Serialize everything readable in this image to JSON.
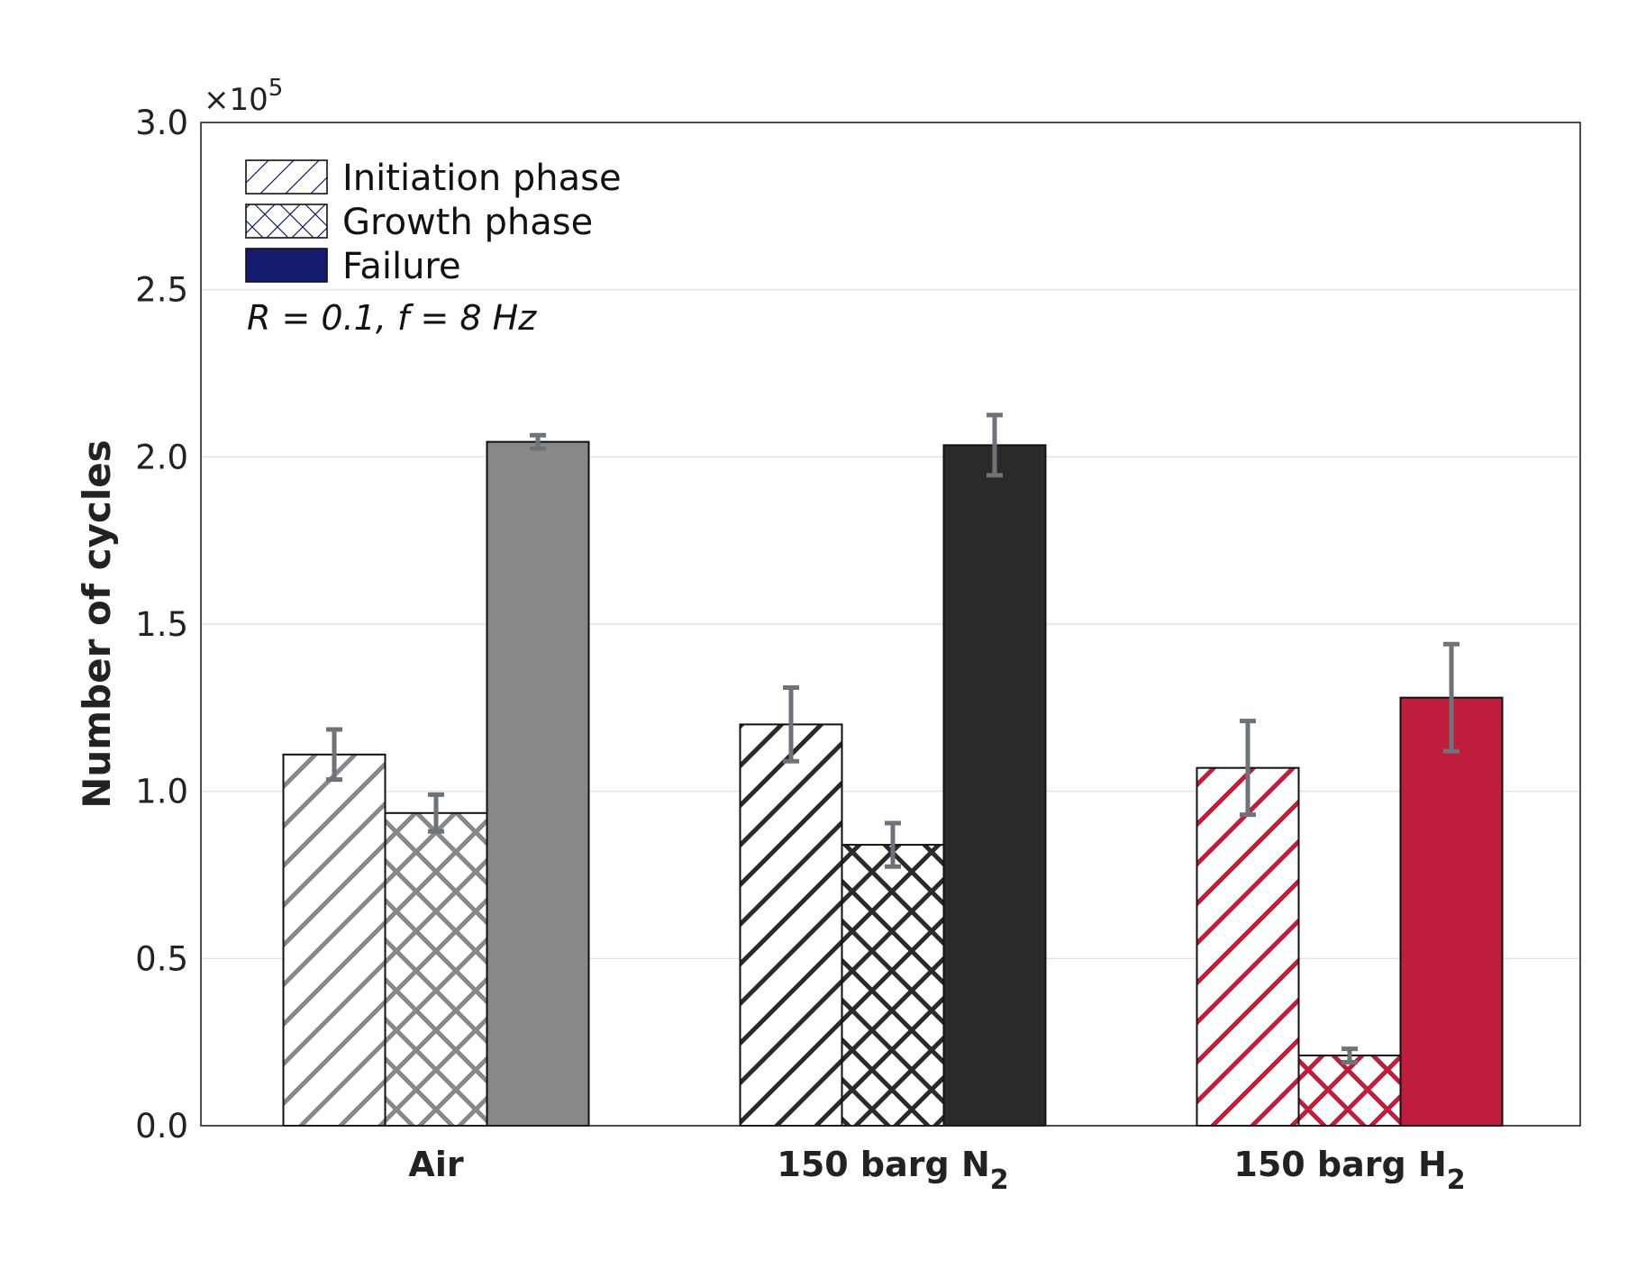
{
  "chart_data": {
    "type": "bar",
    "title": "",
    "xlabel": "",
    "ylabel": "Number of cycles",
    "y_multiplier_base": "×10",
    "y_multiplier_exp": "5",
    "ylim": [
      0,
      3.0
    ],
    "yticks": [
      "0.0",
      "0.5",
      "1.0",
      "1.5",
      "2.0",
      "2.5",
      "3.0"
    ],
    "grid": true,
    "annotation": "R = 0.1, f = 8 Hz",
    "legend_position": "top-left",
    "categories": [
      {
        "label": "Air",
        "sub": "",
        "color": "#888888"
      },
      {
        "label": "150 barg N",
        "sub": "2",
        "color": "#2a2a2a"
      },
      {
        "label": "150 barg H",
        "sub": "2",
        "color": "#be1e3c"
      }
    ],
    "series": [
      {
        "name": "Initiation phase",
        "pattern": "diagonal",
        "values": [
          1.11,
          1.2,
          1.07
        ],
        "errors": [
          0.075,
          0.11,
          0.14
        ]
      },
      {
        "name": "Growth phase",
        "pattern": "crosshatch",
        "values": [
          0.935,
          0.84,
          0.21
        ],
        "errors": [
          0.055,
          0.065,
          0.02
        ]
      },
      {
        "name": "Failure",
        "pattern": "solid",
        "values": [
          2.045,
          2.035,
          1.28
        ],
        "errors": [
          0.02,
          0.09,
          0.16
        ]
      }
    ],
    "legend_color": "#141a6e",
    "error_bar_color": "#6d7378"
  }
}
